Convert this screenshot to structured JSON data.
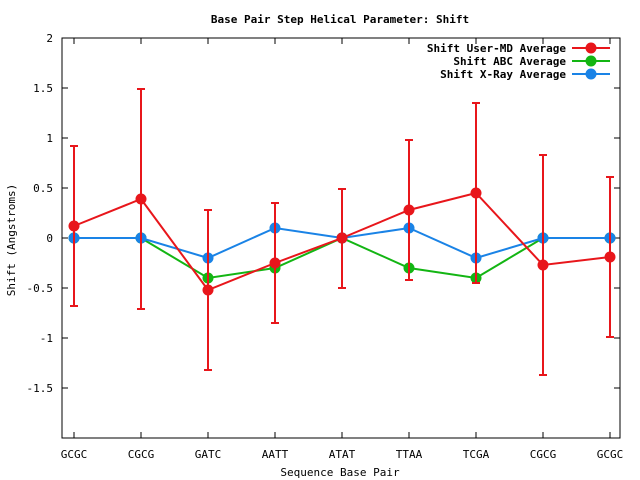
{
  "chart_data": {
    "type": "line",
    "title": "Base Pair Step Helical Parameter: Shift",
    "xlabel": "Sequence Base Pair",
    "ylabel": "Shift (Angstroms)",
    "categories": [
      "GCGC",
      "CGCG",
      "GATC",
      "AATT",
      "ATAT",
      "TTAA",
      "TCGA",
      "CGCG",
      "GCGC"
    ],
    "ylim": [
      -2,
      2
    ],
    "yticks": [
      -1.5,
      -1,
      -0.5,
      0,
      0.5,
      1,
      1.5,
      2
    ],
    "ytick_labels": [
      "-1.5",
      "-1",
      "-0.5",
      "0",
      "0.5",
      "1",
      "1.5",
      "2"
    ],
    "grid": false,
    "legend_position": "top-right",
    "series": [
      {
        "name": "Shift User-MD Average",
        "color": "#e8161b",
        "values": [
          0.12,
          0.39,
          -0.52,
          -0.25,
          0.0,
          0.28,
          0.45,
          -0.27,
          -0.19
        ],
        "error_bars": [
          [
            -0.68,
            0.92
          ],
          [
            -0.71,
            1.49
          ],
          [
            -1.32,
            0.28
          ],
          [
            -0.85,
            0.35
          ],
          [
            -0.5,
            0.49
          ],
          [
            -0.42,
            0.98
          ],
          [
            -0.45,
            1.35
          ],
          [
            -1.37,
            0.83
          ],
          [
            -0.99,
            0.61
          ]
        ]
      },
      {
        "name": "Shift ABC Average",
        "color": "#13b513",
        "values": [
          0.0,
          0.0,
          -0.4,
          -0.3,
          0.0,
          -0.3,
          -0.4,
          0.0,
          0.0
        ]
      },
      {
        "name": "Shift X-Ray Average",
        "color": "#1a83e6",
        "values": [
          0.0,
          0.0,
          -0.2,
          0.1,
          0.0,
          0.1,
          -0.2,
          0.0,
          0.0
        ]
      }
    ]
  }
}
